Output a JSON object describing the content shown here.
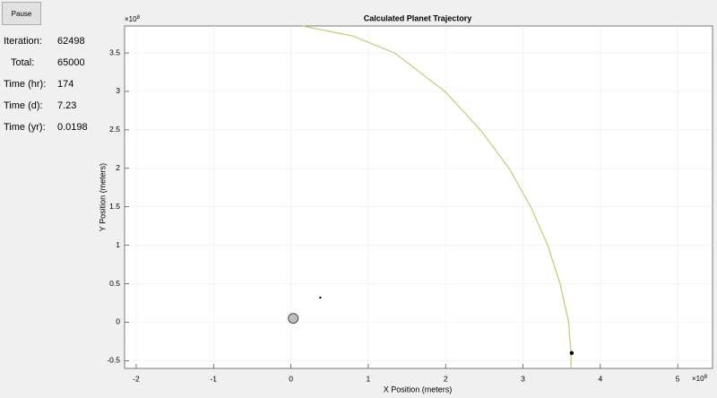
{
  "ui": {
    "pause_button": "Pause",
    "readouts": [
      {
        "label": "Iteration:",
        "value": 62498
      },
      {
        "label": "Total:",
        "value": 65000
      },
      {
        "label": "Time (hr):",
        "value": 174
      },
      {
        "label": "Time (d):",
        "value": 7.23
      },
      {
        "label": "Time (yr):",
        "value": 0.0198
      }
    ]
  },
  "chart_data": {
    "type": "line",
    "title": "Calculated Planet Trajectory",
    "x_label": "X Position (meters)",
    "y_label": "Y Position (meters)",
    "x_multiplier": "×10",
    "x_multiplier_exp": "8",
    "y_multiplier": "×10",
    "y_multiplier_exp": "8",
    "xlim": [
      -2.15,
      5.45
    ],
    "ylim": [
      -0.6,
      3.85
    ],
    "xticks": [
      -2,
      -1,
      0,
      1,
      2,
      3,
      4,
      5
    ],
    "yticks": [
      -0.5,
      0,
      0.5,
      1,
      1.5,
      2,
      2.5,
      3,
      3.5
    ],
    "grid": true,
    "series": [
      {
        "color": "#cdcb7e",
        "x": [
          0.15,
          0.8,
          1.34,
          1.99,
          2.45,
          2.82,
          3.1,
          3.32,
          3.48,
          3.59,
          3.62,
          3.62
        ],
        "y": [
          3.85,
          3.72,
          3.5,
          3.0,
          2.5,
          2.0,
          1.5,
          1.0,
          0.5,
          0.0,
          -0.4,
          -0.6
        ]
      }
    ],
    "markers": [
      {
        "x": 0.03,
        "y": 0.05,
        "color": "#bdbdbd"
      },
      {
        "x": 0.38,
        "y": 0.32,
        "color": "#000000"
      },
      {
        "x": 3.63,
        "y": -0.4,
        "color": "#000000"
      }
    ]
  }
}
